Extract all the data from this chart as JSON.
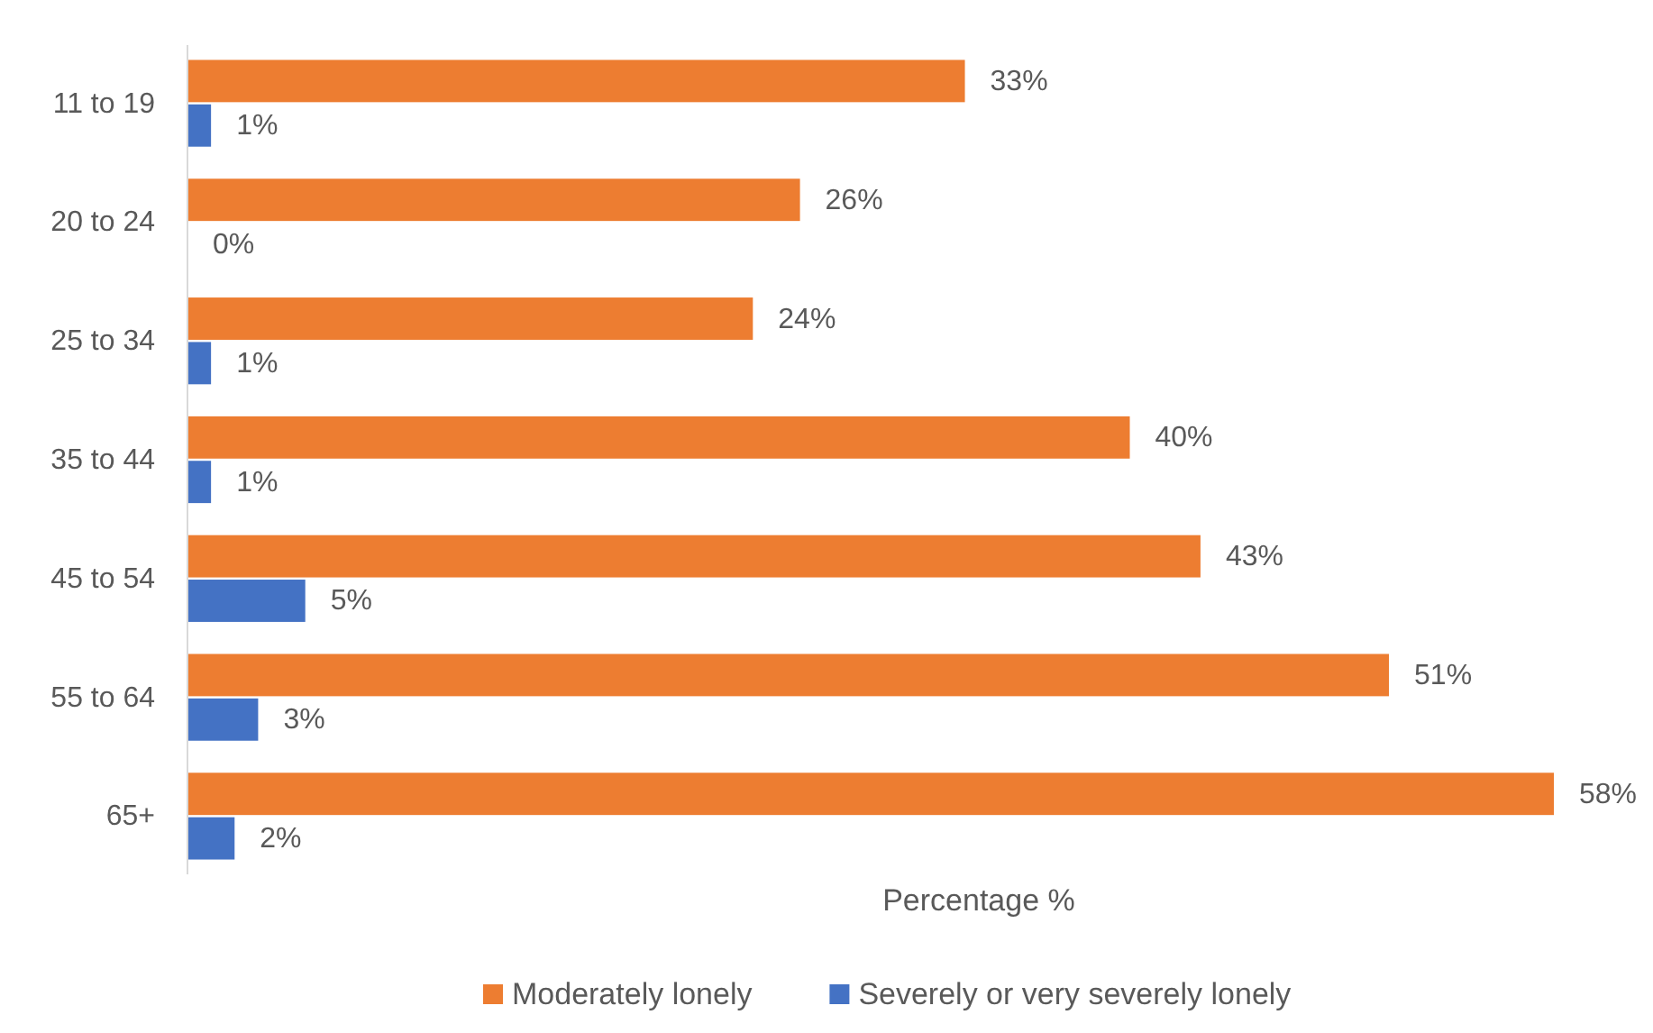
{
  "chart_data": {
    "type": "bar",
    "orientation": "horizontal",
    "xlabel": "Percentage %",
    "categories": [
      "11 to 19",
      "20 to 24",
      "25 to 34",
      "35 to 44",
      "45 to 54",
      "55 to 64",
      "65+"
    ],
    "series": [
      {
        "name": "Moderately lonely",
        "color": "#ed7d31",
        "values": [
          33,
          26,
          24,
          40,
          43,
          51,
          58
        ],
        "value_labels": [
          "33%",
          "26%",
          "24%",
          "40%",
          "43%",
          "51%",
          "58%"
        ]
      },
      {
        "name": "Severely or very severely lonely",
        "color": "#4472c4",
        "values": [
          1,
          0,
          1,
          1,
          5,
          3,
          2
        ],
        "value_labels": [
          "1%",
          "0%",
          "1%",
          "1%",
          "5%",
          "3%",
          "2%"
        ]
      }
    ],
    "tick_labels": "y",
    "legend": "bottom"
  }
}
